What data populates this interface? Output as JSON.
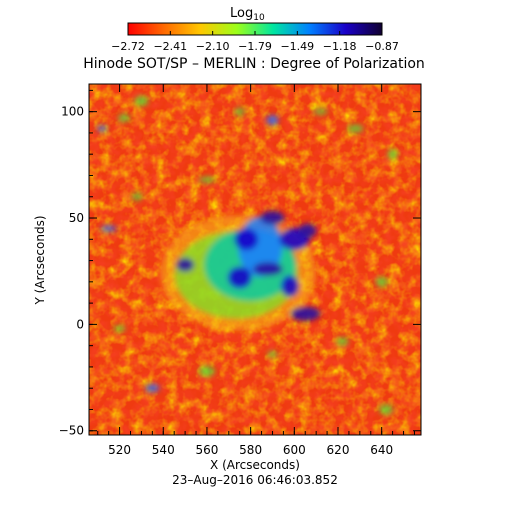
{
  "chart_data": {
    "type": "heatmap",
    "title": "Hinode SOT/SP – MERLIN : Degree of Polarization",
    "xlabel": "X (Arcseconds)",
    "ylabel": "Y (Arcseconds)",
    "timestamp": "23–Aug–2016 06:46:03.852",
    "xlim": [
      506,
      658
    ],
    "ylim": [
      -52,
      113
    ],
    "x_ticks": [
      "520",
      "540",
      "560",
      "580",
      "600",
      "620",
      "640"
    ],
    "y_ticks": [
      "−50",
      "0",
      "50",
      "100"
    ],
    "colorbar": {
      "label_main": "Log",
      "label_sub": "10",
      "range": [
        -2.72,
        -0.87
      ],
      "tick_labels": [
        "−2.72",
        "−2.41",
        "−2.10",
        "−1.79",
        "−1.49",
        "−1.18",
        "−0.87"
      ],
      "colormap": [
        "#ff0000",
        "#ff6a00",
        "#ffc800",
        "#9cff1a",
        "#00e6a0",
        "#0080ff",
        "#1a00c8",
        "#100030"
      ]
    },
    "background_color": "#ef3a10",
    "active_region": {
      "center_arcsec": [
        578,
        28
      ],
      "strong_patches_arcsec": [
        [
          550,
          28
        ],
        [
          575,
          22
        ],
        [
          588,
          26
        ],
        [
          598,
          18
        ],
        [
          590,
          50
        ],
        [
          600,
          40
        ],
        [
          606,
          44
        ],
        [
          578,
          40
        ],
        [
          605,
          5
        ]
      ]
    }
  }
}
